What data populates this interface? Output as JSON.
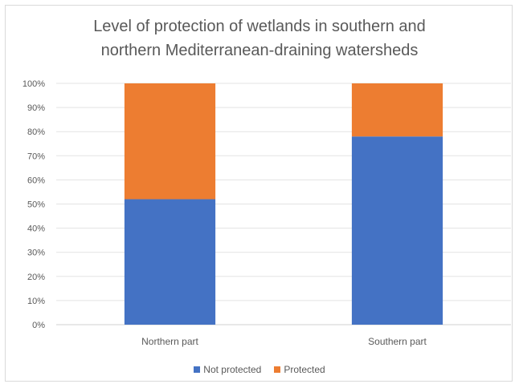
{
  "chart_data": {
    "type": "bar",
    "stacked": true,
    "title_lines": [
      "Level of protection of wetlands in southern and",
      "northern Mediterranean-draining watersheds"
    ],
    "categories": [
      "Northern part",
      "Southern part"
    ],
    "series": [
      {
        "name": "Not protected",
        "values": [
          52,
          78
        ],
        "color": "#4472c4"
      },
      {
        "name": "Protected",
        "values": [
          48,
          22
        ],
        "color": "#ed7d31"
      }
    ],
    "ylim": [
      0,
      100
    ],
    "y_ticks": [
      "0%",
      "10%",
      "20%",
      "30%",
      "40%",
      "50%",
      "60%",
      "70%",
      "80%",
      "90%",
      "100%"
    ],
    "grid": true,
    "legend_position": "bottom"
  }
}
